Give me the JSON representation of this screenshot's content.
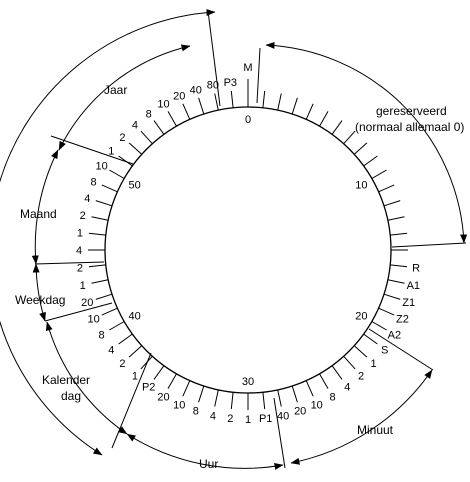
{
  "outer_labels": {
    "jaar": "Jaar",
    "maand": "Maand",
    "weekdag": "Weekdag",
    "kalenderdag": [
      "Kalender",
      "dag"
    ],
    "uur": "Uur",
    "minuut": "Minuut",
    "gereserveerd": [
      "gereserveerd",
      "(normaal allemaal 0)"
    ]
  },
  "tick_labels": [
    {
      "text": "M",
      "angle": 0,
      "side": "out"
    },
    {
      "text": "0",
      "angle": 0,
      "side": "in"
    },
    {
      "text": "10",
      "angle": 60,
      "side": "in"
    },
    {
      "text": "20",
      "angle": 120,
      "side": "in"
    },
    {
      "text": "30",
      "angle": 180,
      "side": "in"
    },
    {
      "text": "40",
      "angle": 240,
      "side": "in"
    },
    {
      "text": "50",
      "angle": 300,
      "side": "in"
    },
    {
      "text": "R",
      "angle": 96,
      "side": "out"
    },
    {
      "text": "A1",
      "angle": 102,
      "side": "out"
    },
    {
      "text": "Z1",
      "angle": 108,
      "side": "out"
    },
    {
      "text": "Z2",
      "angle": 114,
      "side": "out"
    },
    {
      "text": "A2",
      "angle": 120,
      "side": "out"
    },
    {
      "text": "S",
      "angle": 126,
      "side": "out"
    },
    {
      "text": "1",
      "angle": 132,
      "side": "out"
    },
    {
      "text": "2",
      "angle": 138,
      "side": "out"
    },
    {
      "text": "4",
      "angle": 144,
      "side": "out"
    },
    {
      "text": "8",
      "angle": 150,
      "side": "out"
    },
    {
      "text": "10",
      "angle": 156,
      "side": "out"
    },
    {
      "text": "20",
      "angle": 162,
      "side": "out"
    },
    {
      "text": "40",
      "angle": 168,
      "side": "out"
    },
    {
      "text": "P1",
      "angle": 174,
      "side": "out"
    },
    {
      "text": "1",
      "angle": 180,
      "side": "out"
    },
    {
      "text": "2",
      "angle": 186,
      "side": "out"
    },
    {
      "text": "4",
      "angle": 192,
      "side": "out"
    },
    {
      "text": "8",
      "angle": 198,
      "side": "out"
    },
    {
      "text": "10",
      "angle": 204,
      "side": "out"
    },
    {
      "text": "20",
      "angle": 210,
      "side": "out"
    },
    {
      "text": "P2",
      "angle": 216,
      "side": "out"
    },
    {
      "text": "1",
      "angle": 222,
      "side": "out"
    },
    {
      "text": "2",
      "angle": 228,
      "side": "out"
    },
    {
      "text": "4",
      "angle": 234,
      "side": "out"
    },
    {
      "text": "8",
      "angle": 240,
      "side": "out"
    },
    {
      "text": "10",
      "angle": 246,
      "side": "out"
    },
    {
      "text": "20",
      "angle": 252,
      "side": "out"
    },
    {
      "text": "1",
      "angle": 258,
      "side": "out"
    },
    {
      "text": "2",
      "angle": 264,
      "side": "out"
    },
    {
      "text": "4",
      "angle": 270,
      "side": "out"
    },
    {
      "text": "1",
      "angle": 276,
      "side": "out"
    },
    {
      "text": "2",
      "angle": 282,
      "side": "out"
    },
    {
      "text": "4",
      "angle": 288,
      "side": "out"
    },
    {
      "text": "8",
      "angle": 294,
      "side": "out"
    },
    {
      "text": "10",
      "angle": 300,
      "side": "out"
    },
    {
      "text": "1",
      "angle": 306,
      "side": "out"
    },
    {
      "text": "2",
      "angle": 312,
      "side": "out"
    },
    {
      "text": "4",
      "angle": 318,
      "side": "out"
    },
    {
      "text": "8",
      "angle": 324,
      "side": "out"
    },
    {
      "text": "10",
      "angle": 330,
      "side": "out"
    },
    {
      "text": "20",
      "angle": 336,
      "side": "out"
    },
    {
      "text": "40",
      "angle": 342,
      "side": "out"
    },
    {
      "text": "80",
      "angle": 348,
      "side": "out"
    },
    {
      "text": "P3",
      "angle": 354,
      "side": "out"
    }
  ]
}
